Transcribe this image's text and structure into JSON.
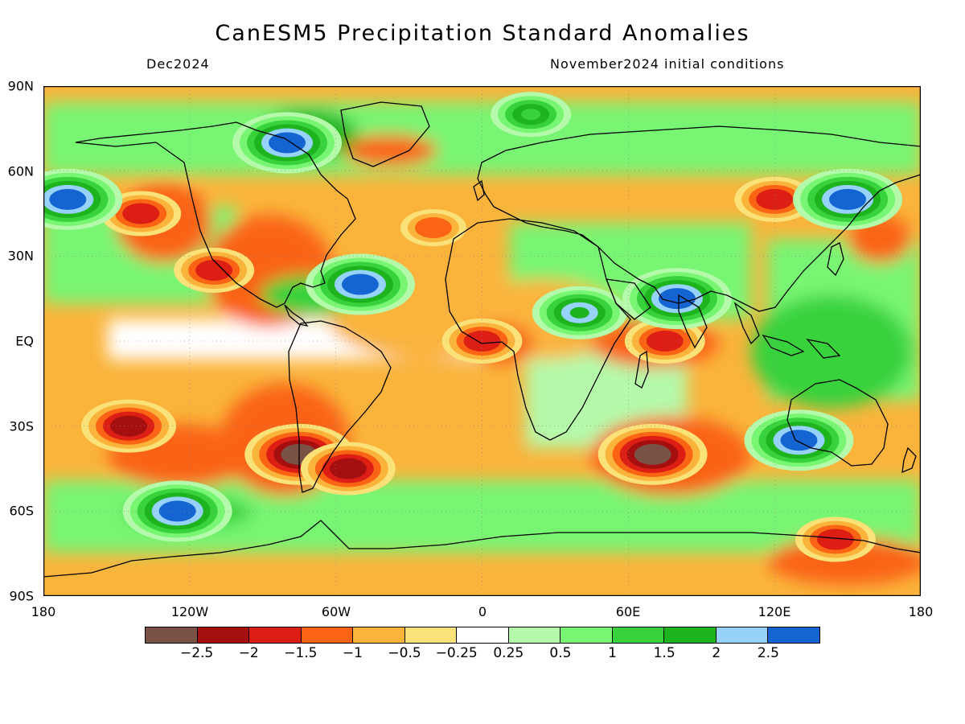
{
  "header": {
    "title": "CanESM5 Precipitation Standard Anomalies",
    "valid_month": "Dec2024",
    "init_conditions": "November2024 initial conditions"
  },
  "map": {
    "projection": "equirectangular",
    "lon_range": [
      -180,
      180
    ],
    "lat_range": [
      -90,
      90
    ],
    "lat_labels": [
      "90N",
      "60N",
      "30N",
      "EQ",
      "30S",
      "60S",
      "90S"
    ],
    "lon_labels": [
      "180",
      "120W",
      "60W",
      "0",
      "60E",
      "120E",
      "180"
    ],
    "grid": true,
    "coastlines": true
  },
  "colorbar": {
    "colors": [
      "#7a5245",
      "#a50f0f",
      "#dc1e14",
      "#fa6414",
      "#fab43c",
      "#fae178",
      "#ffffff",
      "#b4faaa",
      "#78f573",
      "#37d23c",
      "#1eb41e",
      "#96d2fa",
      "#1464d2"
    ],
    "labels": [
      "−2.5",
      "−2",
      "−1.5",
      "−1",
      "−0.5",
      "−0.25",
      "0.25",
      "0.5",
      "1",
      "1.5",
      "2",
      "2.5"
    ]
  },
  "chart_data": {
    "type": "heatmap",
    "title": "CanESM5 Precipitation Standard Anomalies",
    "variable": "Precipitation standard anomaly",
    "valid_time": "Dec2024",
    "initial_conditions": "November2024",
    "levels": [
      -2.5,
      -2,
      -1.5,
      -1,
      -0.5,
      -0.25,
      0.25,
      0.5,
      1,
      1.5,
      2,
      2.5
    ],
    "x_range": [
      -180,
      180
    ],
    "y_range": [
      -90,
      90
    ],
    "features": [
      {
        "lon": -75,
        "lat": -40,
        "value": -2.6
      },
      {
        "lon": 70,
        "lat": -40,
        "value": -2.6
      },
      {
        "lon": -145,
        "lat": -30,
        "value": -2.0
      },
      {
        "lon": -55,
        "lat": -45,
        "value": -2.0
      },
      {
        "lon": 75,
        "lat": 0,
        "value": -1.8
      },
      {
        "lon": 0,
        "lat": 0,
        "value": -1.6
      },
      {
        "lon": -110,
        "lat": 25,
        "value": -1.6
      },
      {
        "lon": -140,
        "lat": 45,
        "value": -1.5
      },
      {
        "lon": 120,
        "lat": 50,
        "value": -1.6
      },
      {
        "lon": 145,
        "lat": -70,
        "value": -1.6
      },
      {
        "lon": -80,
        "lat": 70,
        "value": 2.6
      },
      {
        "lon": -170,
        "lat": 50,
        "value": 2.6
      },
      {
        "lon": 80,
        "lat": 15,
        "value": 2.6
      },
      {
        "lon": 150,
        "lat": 50,
        "value": 2.6
      },
      {
        "lon": 130,
        "lat": -35,
        "value": 2.6
      },
      {
        "lon": -125,
        "lat": -60,
        "value": 2.6
      },
      {
        "lon": -50,
        "lat": 20,
        "value": 2.6
      },
      {
        "lon": 40,
        "lat": 10,
        "value": 2.0
      },
      {
        "lon": 20,
        "lat": 80,
        "value": 1.5
      },
      {
        "lon": -20,
        "lat": 40,
        "value": -1.0
      }
    ]
  }
}
